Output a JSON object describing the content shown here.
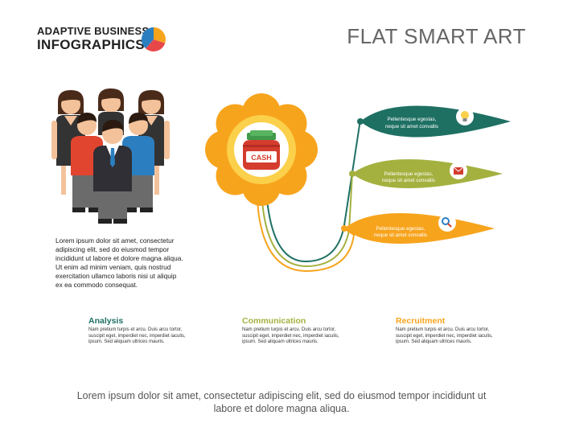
{
  "brand": {
    "line1": "ADAPTIVE BUSINESS",
    "line2": "INFOGRAPHICS"
  },
  "title": "FLAT SMART ART",
  "left_paragraph": "Lorem ipsum dolor sit amet, consectetur adipiscing elit, sed do eiusmod tempor incididunt ut labore et dolore magna aliqua. Ut enim ad minim veniam, quis nostrud exercitation ullamco laboris nisi ut aliquip ex ea commodo consequat.",
  "center": {
    "label": "CASH",
    "icon": "money-bag-icon"
  },
  "leaves": [
    {
      "line1": "Pellentesque egestas,",
      "line2": "neque sit amet convallis",
      "icon": "lightbulb-icon",
      "color": "#1e7063"
    },
    {
      "line1": "Pellentesque egestas,",
      "line2": "neque sit amet convallis",
      "icon": "mail-icon",
      "color": "#a4b13f"
    },
    {
      "line1": "Pellentesque egestas,",
      "line2": "neque sit amet convallis",
      "icon": "magnifier-icon",
      "color": "#f7a41d"
    }
  ],
  "columns": [
    {
      "heading": "Analysis",
      "color": "#1e7063",
      "text": "Nam pretium turpis et arcu. Duis arcu tortor, suscipit eget, imperdiet nec, imperdiet iaculis, ipsum. Sed aliquam ultrices mauris."
    },
    {
      "heading": "Communication",
      "color": "#a4b13f",
      "text": "Nam pretium turpis et arcu. Duis arcu tortor, suscipit eget, imperdiet nec, imperdiet iaculis, ipsum. Sed aliquam ultrices mauris."
    },
    {
      "heading": "Recruitment",
      "color": "#f7a41d",
      "text": "Nam pretium turpis et arcu. Duis arcu tortor, suscipit eget, imperdiet nec, imperdiet iaculis, ipsum. Sed aliquam ultrices mauris."
    }
  ],
  "footer": "Lorem ipsum dolor sit amet, consectetur adipiscing elit, sed do eiusmod tempor incididunt ut labore et dolore magna aliqua."
}
